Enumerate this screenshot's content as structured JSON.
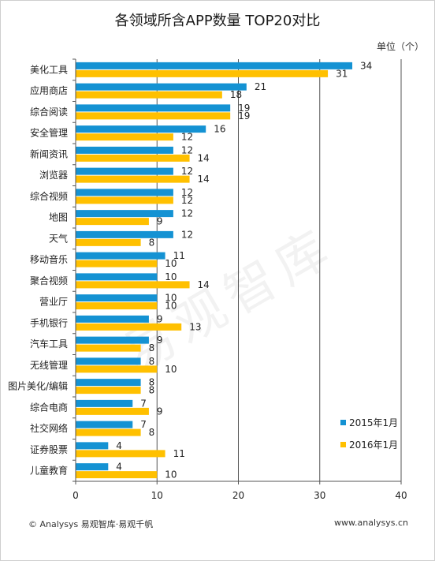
{
  "title": "各领域所含APP数量 TOP20对比",
  "unit_label": "单位（个）",
  "footer": {
    "left": "© Analysys 易观智库·易观千帆",
    "right": "www.analysys.cn"
  },
  "watermark": "易观智库",
  "colors": {
    "series_2015": "#1492d3",
    "series_2016": "#ffc000",
    "grid": "#555555",
    "axis": "#555555"
  },
  "chart_data": {
    "type": "bar",
    "orientation": "horizontal",
    "categories": [
      "美化工具",
      "应用商店",
      "综合阅读",
      "安全管理",
      "新闻资讯",
      "浏览器",
      "综合视频",
      "地图",
      "天气",
      "移动音乐",
      "聚合视频",
      "营业厅",
      "手机银行",
      "汽车工具",
      "无线管理",
      "图片美化/编辑",
      "综合电商",
      "社交网络",
      "证券股票",
      "儿童教育"
    ],
    "series": [
      {
        "name": "2015年1月",
        "values": [
          34,
          21,
          19,
          16,
          12,
          12,
          12,
          12,
          12,
          11,
          10,
          10,
          9,
          9,
          8,
          8,
          7,
          7,
          4,
          4
        ]
      },
      {
        "name": "2016年1月",
        "values": [
          31,
          18,
          19,
          12,
          14,
          14,
          12,
          9,
          8,
          10,
          14,
          10,
          13,
          8,
          10,
          8,
          9,
          8,
          11,
          10
        ]
      }
    ],
    "x_ticks": [
      "0",
      "10",
      "20",
      "30",
      "40"
    ],
    "xlim": [
      0,
      40
    ],
    "grid": true,
    "legend_position": "bottom-right",
    "data_labels": true
  }
}
